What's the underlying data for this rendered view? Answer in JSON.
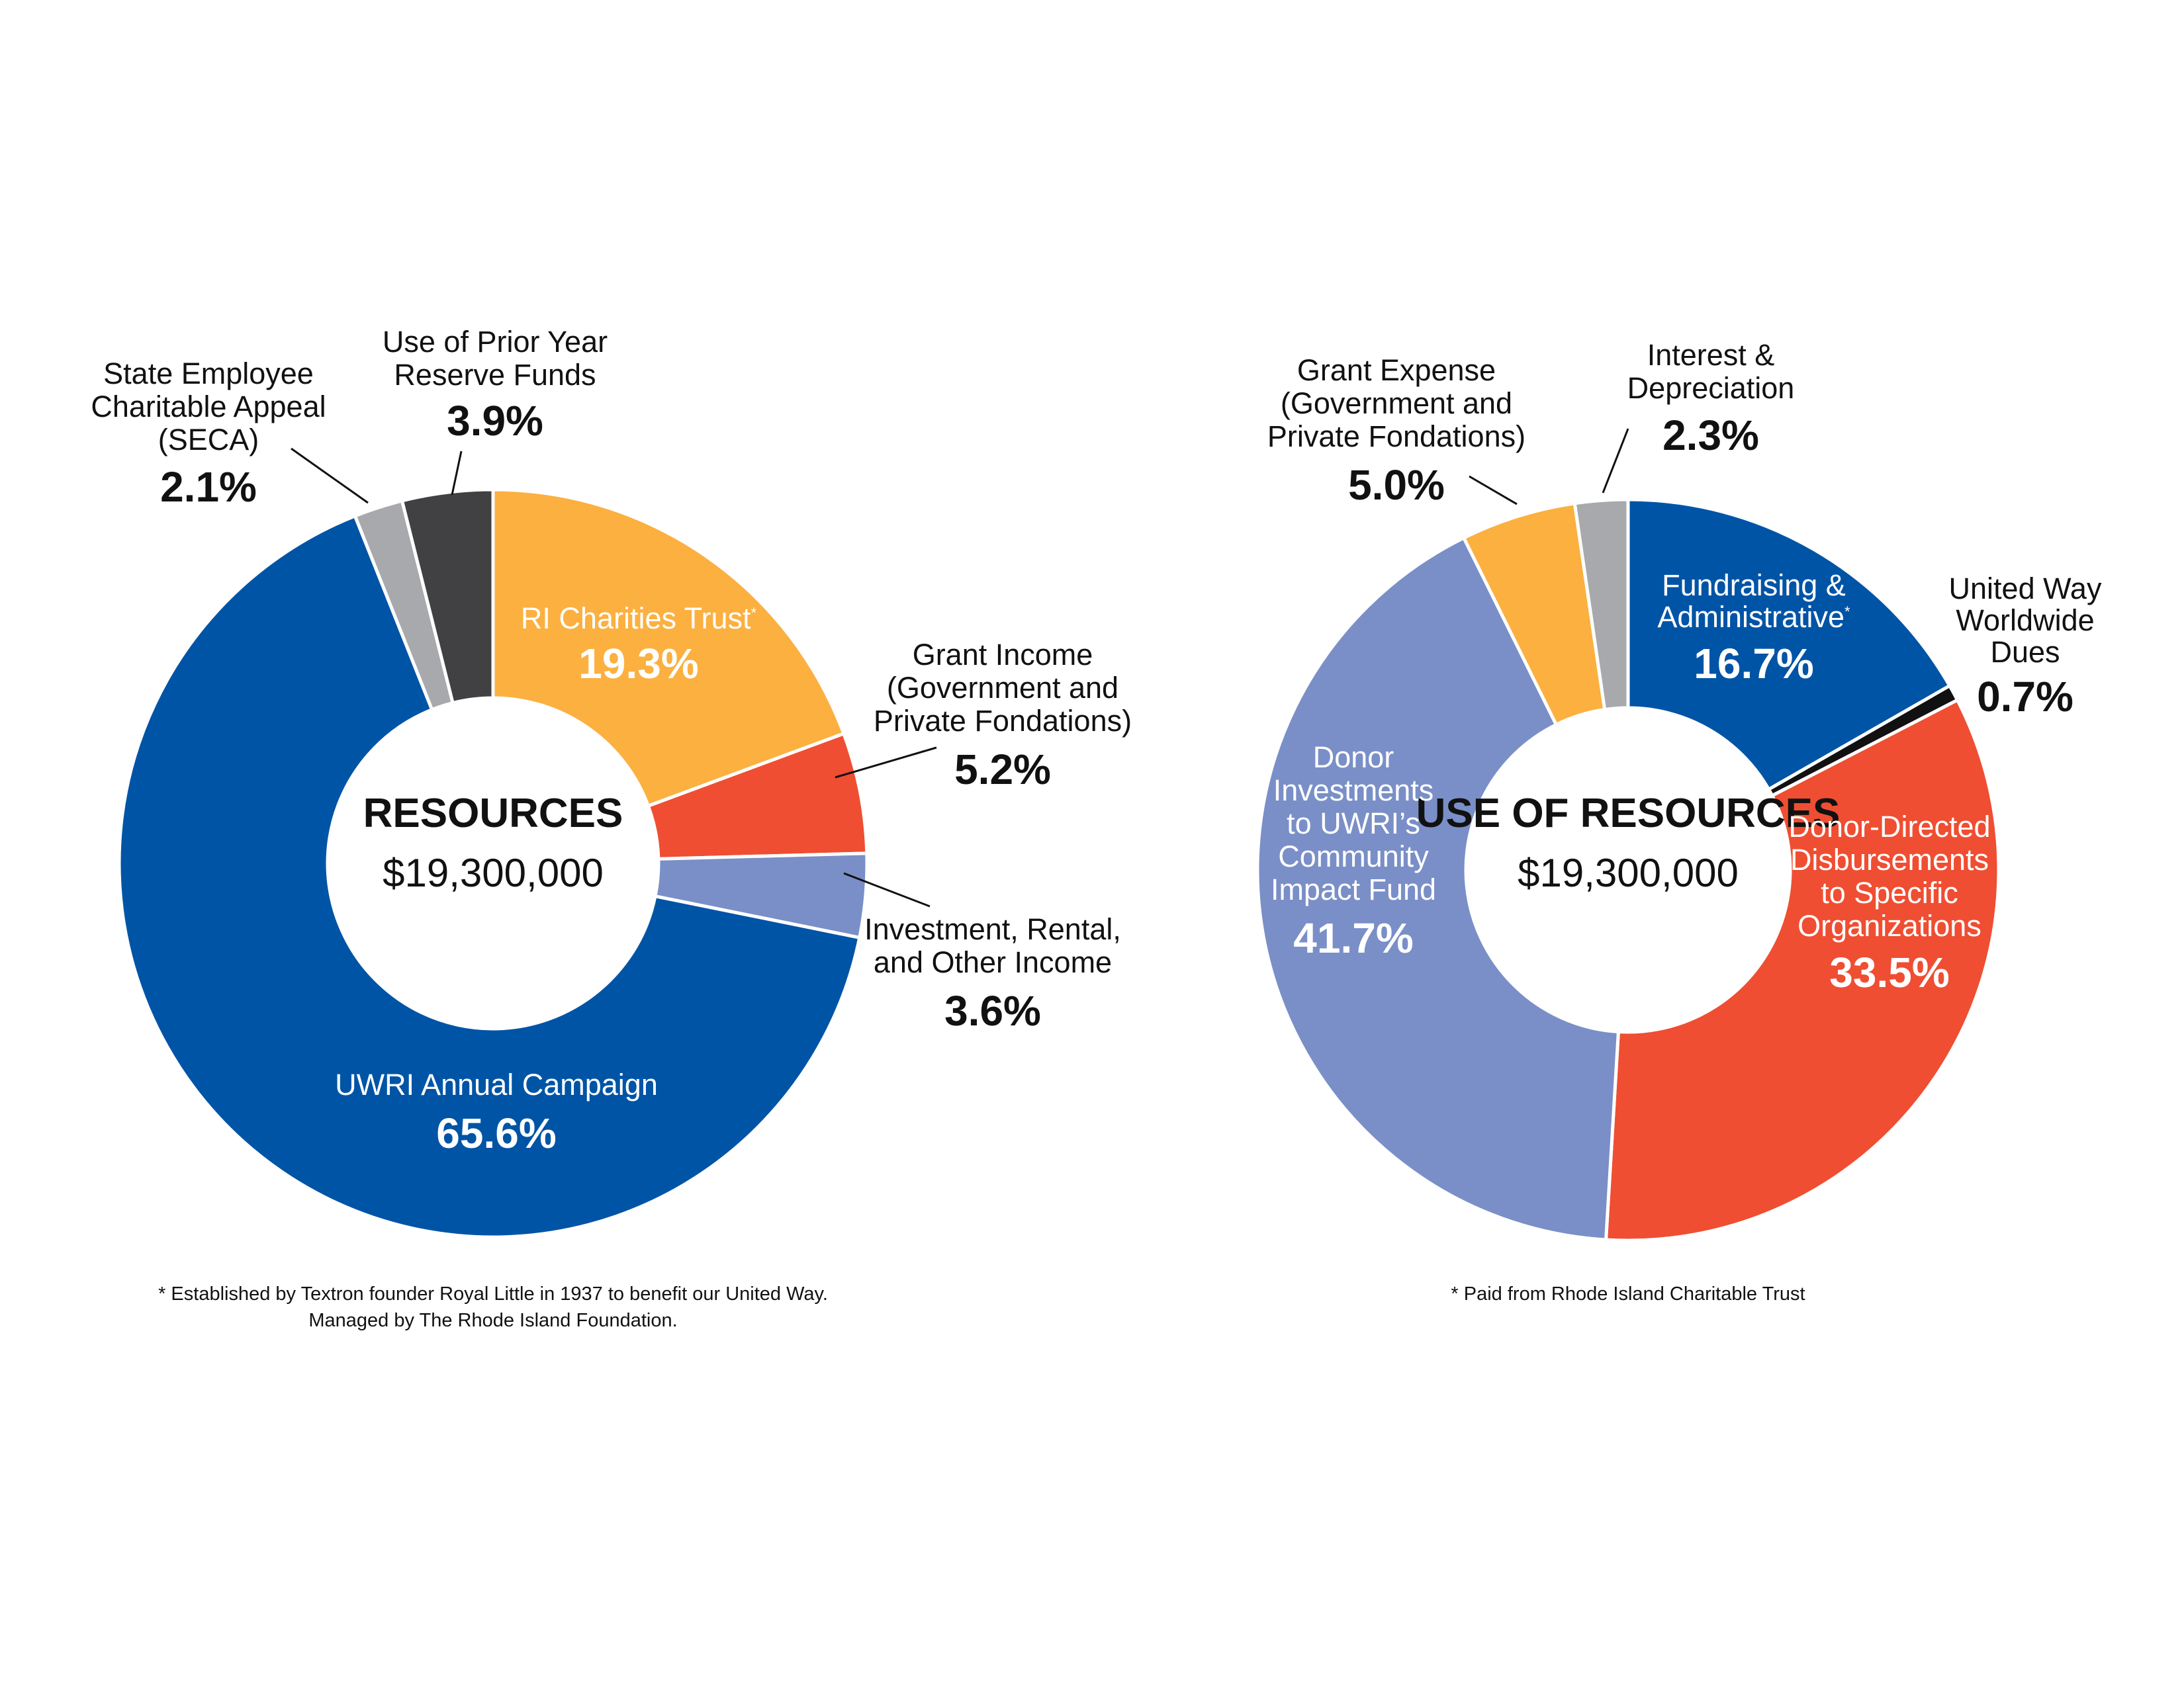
{
  "chart_data": [
    {
      "type": "pie",
      "center_title": "RESOURCES",
      "center_total": "$19,300,000",
      "slices": [
        {
          "name": "RI Charities Trust",
          "sup": "*",
          "value": 19.3,
          "pct": "19.3%",
          "color": "#FBB040"
        },
        {
          "name": "Grant Income (Government and Private Fondations)",
          "value": 5.2,
          "pct": "5.2%",
          "color": "#EF4E32"
        },
        {
          "name": "Investment, Rental, and Other Income",
          "value": 3.6,
          "pct": "3.6%",
          "color": "#7A8FC7"
        },
        {
          "name": "UWRI Annual Campaign",
          "value": 65.6,
          "pct": "65.6%",
          "color": "#0054A6"
        },
        {
          "name": "State Employee Charitable Appeal (SECA)",
          "value": 2.1,
          "pct": "2.1%",
          "color": "#A7A9AC"
        },
        {
          "name": "Use of Prior Year Reserve Funds",
          "value": 3.9,
          "pct": "3.9%",
          "color": "#414042"
        }
      ],
      "labels": {
        "ri_trust": [
          "RI Charities Trust"
        ],
        "grant": [
          "Grant Income",
          "(Government and",
          "Private Fondations)"
        ],
        "investment": [
          "Investment, Rental,",
          "and Other Income"
        ],
        "campaign": [
          "UWRI Annual Campaign"
        ],
        "seca": [
          "State Employee",
          "Charitable Appeal",
          "(SECA)"
        ],
        "reserve": [
          "Use of Prior Year",
          "Reserve Funds"
        ]
      },
      "footnote": [
        "* Established by Textron founder Royal Little in 1937 to benefit our United Way.",
        "Managed by The Rhode Island Foundation."
      ]
    },
    {
      "type": "pie",
      "center_title": "USE OF RESOURCES",
      "center_total": "$19,300,000",
      "slices": [
        {
          "name": "Fundraising & Administrative",
          "sup": "*",
          "value": 16.7,
          "pct": "16.7%",
          "color": "#0054A6"
        },
        {
          "name": "United Way Worldwide Dues",
          "value": 0.7,
          "pct": "0.7%",
          "color": "#111111"
        },
        {
          "name": "Donor-Directed Disbursements to Specific Organizations",
          "value": 33.5,
          "pct": "33.5%",
          "color": "#EF4E32"
        },
        {
          "name": "Donor Investments to UWRI's Community Impact Fund",
          "value": 41.7,
          "pct": "41.7%",
          "color": "#7A8FC7"
        },
        {
          "name": "Grant Expense (Government and Private Fondations)",
          "value": 5.0,
          "pct": "5.0%",
          "color": "#FBB040"
        },
        {
          "name": "Interest & Depreciation",
          "value": 2.3,
          "pct": "2.3%",
          "color": "#A7A9AC"
        }
      ],
      "labels": {
        "fundraising": [
          "Fundraising &",
          "Administrative"
        ],
        "dues": [
          "United Way",
          "Worldwide",
          "Dues"
        ],
        "donor_directed": [
          "Donor-Directed",
          "Disbursements",
          "to Specific",
          "Organizations"
        ],
        "donor_investments": [
          "Donor",
          "Investments",
          "to UWRI’s",
          "Community",
          "Impact Fund"
        ],
        "grant_expense": [
          "Grant Expense",
          "(Government and",
          "Private Fondations)"
        ],
        "interest": [
          "Interest &",
          "Depreciation"
        ]
      },
      "footnote": [
        "* Paid from Rhode Island Charitable Trust"
      ]
    }
  ]
}
